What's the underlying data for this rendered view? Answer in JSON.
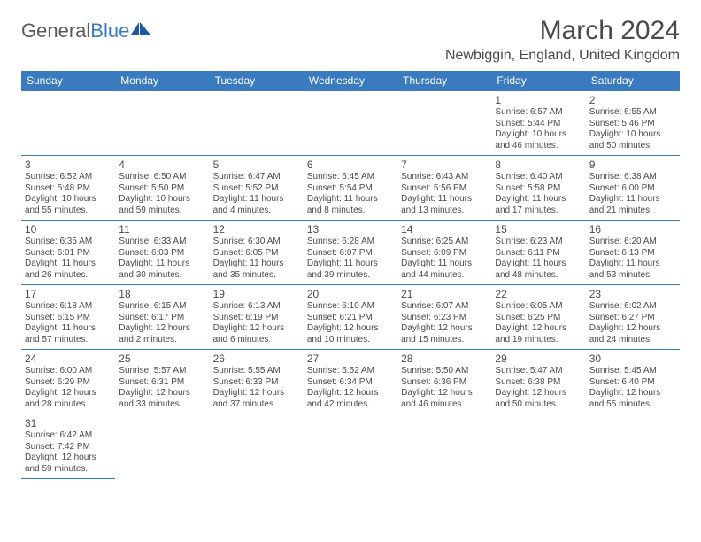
{
  "brand": {
    "part1": "General",
    "part2": "Blue"
  },
  "title": "March 2024",
  "location": "Newbiggin, England, United Kingdom",
  "colors": {
    "accent": "#3a7bbf",
    "text": "#4a4a4a",
    "bg": "#ffffff"
  },
  "day_headers": [
    "Sunday",
    "Monday",
    "Tuesday",
    "Wednesday",
    "Thursday",
    "Friday",
    "Saturday"
  ],
  "weeks": [
    [
      null,
      null,
      null,
      null,
      null,
      {
        "n": "1",
        "sr": "Sunrise: 6:57 AM",
        "ss": "Sunset: 5:44 PM",
        "d1": "Daylight: 10 hours",
        "d2": "and 46 minutes."
      },
      {
        "n": "2",
        "sr": "Sunrise: 6:55 AM",
        "ss": "Sunset: 5:46 PM",
        "d1": "Daylight: 10 hours",
        "d2": "and 50 minutes."
      }
    ],
    [
      {
        "n": "3",
        "sr": "Sunrise: 6:52 AM",
        "ss": "Sunset: 5:48 PM",
        "d1": "Daylight: 10 hours",
        "d2": "and 55 minutes."
      },
      {
        "n": "4",
        "sr": "Sunrise: 6:50 AM",
        "ss": "Sunset: 5:50 PM",
        "d1": "Daylight: 10 hours",
        "d2": "and 59 minutes."
      },
      {
        "n": "5",
        "sr": "Sunrise: 6:47 AM",
        "ss": "Sunset: 5:52 PM",
        "d1": "Daylight: 11 hours",
        "d2": "and 4 minutes."
      },
      {
        "n": "6",
        "sr": "Sunrise: 6:45 AM",
        "ss": "Sunset: 5:54 PM",
        "d1": "Daylight: 11 hours",
        "d2": "and 8 minutes."
      },
      {
        "n": "7",
        "sr": "Sunrise: 6:43 AM",
        "ss": "Sunset: 5:56 PM",
        "d1": "Daylight: 11 hours",
        "d2": "and 13 minutes."
      },
      {
        "n": "8",
        "sr": "Sunrise: 6:40 AM",
        "ss": "Sunset: 5:58 PM",
        "d1": "Daylight: 11 hours",
        "d2": "and 17 minutes."
      },
      {
        "n": "9",
        "sr": "Sunrise: 6:38 AM",
        "ss": "Sunset: 6:00 PM",
        "d1": "Daylight: 11 hours",
        "d2": "and 21 minutes."
      }
    ],
    [
      {
        "n": "10",
        "sr": "Sunrise: 6:35 AM",
        "ss": "Sunset: 6:01 PM",
        "d1": "Daylight: 11 hours",
        "d2": "and 26 minutes."
      },
      {
        "n": "11",
        "sr": "Sunrise: 6:33 AM",
        "ss": "Sunset: 6:03 PM",
        "d1": "Daylight: 11 hours",
        "d2": "and 30 minutes."
      },
      {
        "n": "12",
        "sr": "Sunrise: 6:30 AM",
        "ss": "Sunset: 6:05 PM",
        "d1": "Daylight: 11 hours",
        "d2": "and 35 minutes."
      },
      {
        "n": "13",
        "sr": "Sunrise: 6:28 AM",
        "ss": "Sunset: 6:07 PM",
        "d1": "Daylight: 11 hours",
        "d2": "and 39 minutes."
      },
      {
        "n": "14",
        "sr": "Sunrise: 6:25 AM",
        "ss": "Sunset: 6:09 PM",
        "d1": "Daylight: 11 hours",
        "d2": "and 44 minutes."
      },
      {
        "n": "15",
        "sr": "Sunrise: 6:23 AM",
        "ss": "Sunset: 6:11 PM",
        "d1": "Daylight: 11 hours",
        "d2": "and 48 minutes."
      },
      {
        "n": "16",
        "sr": "Sunrise: 6:20 AM",
        "ss": "Sunset: 6:13 PM",
        "d1": "Daylight: 11 hours",
        "d2": "and 53 minutes."
      }
    ],
    [
      {
        "n": "17",
        "sr": "Sunrise: 6:18 AM",
        "ss": "Sunset: 6:15 PM",
        "d1": "Daylight: 11 hours",
        "d2": "and 57 minutes."
      },
      {
        "n": "18",
        "sr": "Sunrise: 6:15 AM",
        "ss": "Sunset: 6:17 PM",
        "d1": "Daylight: 12 hours",
        "d2": "and 2 minutes."
      },
      {
        "n": "19",
        "sr": "Sunrise: 6:13 AM",
        "ss": "Sunset: 6:19 PM",
        "d1": "Daylight: 12 hours",
        "d2": "and 6 minutes."
      },
      {
        "n": "20",
        "sr": "Sunrise: 6:10 AM",
        "ss": "Sunset: 6:21 PM",
        "d1": "Daylight: 12 hours",
        "d2": "and 10 minutes."
      },
      {
        "n": "21",
        "sr": "Sunrise: 6:07 AM",
        "ss": "Sunset: 6:23 PM",
        "d1": "Daylight: 12 hours",
        "d2": "and 15 minutes."
      },
      {
        "n": "22",
        "sr": "Sunrise: 6:05 AM",
        "ss": "Sunset: 6:25 PM",
        "d1": "Daylight: 12 hours",
        "d2": "and 19 minutes."
      },
      {
        "n": "23",
        "sr": "Sunrise: 6:02 AM",
        "ss": "Sunset: 6:27 PM",
        "d1": "Daylight: 12 hours",
        "d2": "and 24 minutes."
      }
    ],
    [
      {
        "n": "24",
        "sr": "Sunrise: 6:00 AM",
        "ss": "Sunset: 6:29 PM",
        "d1": "Daylight: 12 hours",
        "d2": "and 28 minutes."
      },
      {
        "n": "25",
        "sr": "Sunrise: 5:57 AM",
        "ss": "Sunset: 6:31 PM",
        "d1": "Daylight: 12 hours",
        "d2": "and 33 minutes."
      },
      {
        "n": "26",
        "sr": "Sunrise: 5:55 AM",
        "ss": "Sunset: 6:33 PM",
        "d1": "Daylight: 12 hours",
        "d2": "and 37 minutes."
      },
      {
        "n": "27",
        "sr": "Sunrise: 5:52 AM",
        "ss": "Sunset: 6:34 PM",
        "d1": "Daylight: 12 hours",
        "d2": "and 42 minutes."
      },
      {
        "n": "28",
        "sr": "Sunrise: 5:50 AM",
        "ss": "Sunset: 6:36 PM",
        "d1": "Daylight: 12 hours",
        "d2": "and 46 minutes."
      },
      {
        "n": "29",
        "sr": "Sunrise: 5:47 AM",
        "ss": "Sunset: 6:38 PM",
        "d1": "Daylight: 12 hours",
        "d2": "and 50 minutes."
      },
      {
        "n": "30",
        "sr": "Sunrise: 5:45 AM",
        "ss": "Sunset: 6:40 PM",
        "d1": "Daylight: 12 hours",
        "d2": "and 55 minutes."
      }
    ],
    [
      {
        "n": "31",
        "sr": "Sunrise: 6:42 AM",
        "ss": "Sunset: 7:42 PM",
        "d1": "Daylight: 12 hours",
        "d2": "and 59 minutes."
      },
      null,
      null,
      null,
      null,
      null,
      null
    ]
  ]
}
